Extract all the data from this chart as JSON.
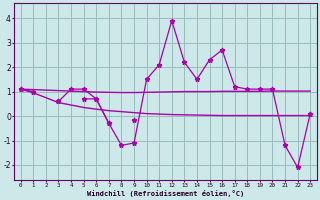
{
  "x": [
    0,
    1,
    2,
    3,
    4,
    5,
    6,
    7,
    8,
    9,
    10,
    11,
    12,
    13,
    14,
    15,
    16,
    17,
    18,
    19,
    20,
    21,
    22,
    23
  ],
  "line1": [
    1.1,
    1.0,
    null,
    0.6,
    1.1,
    1.1,
    0.7,
    -0.3,
    -1.2,
    -1.1,
    1.5,
    2.1,
    3.9,
    2.2,
    1.5,
    2.3,
    2.7,
    1.2,
    1.1,
    1.1,
    1.1,
    -1.2,
    -2.1,
    0.1
  ],
  "line2": [
    1.1,
    null,
    null,
    0.6,
    null,
    0.7,
    0.7,
    -0.3,
    null,
    -0.15,
    null,
    null,
    null,
    null,
    null,
    null,
    null,
    null,
    null,
    null,
    null,
    null,
    null,
    0.1
  ],
  "trend1": [
    1.1,
    1.08,
    1.06,
    1.04,
    1.02,
    1.0,
    0.98,
    0.97,
    0.96,
    0.96,
    0.97,
    0.98,
    0.99,
    1.0,
    1.0,
    1.0,
    1.01,
    1.01,
    1.01,
    1.01,
    1.02,
    1.02,
    1.02,
    1.02
  ],
  "trend2": [
    1.1,
    0.95,
    0.75,
    0.55,
    0.45,
    0.35,
    0.28,
    0.22,
    0.18,
    0.14,
    0.1,
    0.08,
    0.06,
    0.05,
    0.04,
    0.03,
    0.02,
    0.02,
    0.02,
    0.02,
    0.02,
    0.02,
    0.02,
    0.02
  ],
  "bg_color": "#cce8e8",
  "line_color": "#aa00aa",
  "grid_color": "#99bbbb",
  "ylabel_values": [
    -2,
    -1,
    0,
    1,
    2,
    3,
    4
  ],
  "xlabel": "Windchill (Refroidissement éolien,°C)",
  "ylim": [
    -2.6,
    4.6
  ],
  "xlim": [
    -0.5,
    23.5
  ]
}
